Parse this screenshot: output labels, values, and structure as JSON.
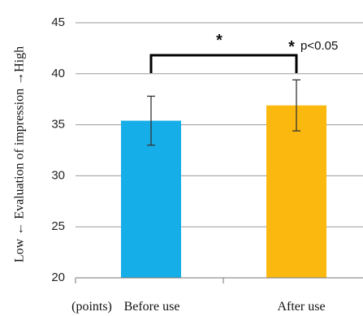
{
  "chart_data": {
    "type": "bar",
    "categories": [
      "Before use",
      "After use"
    ],
    "values": [
      35.4,
      36.9
    ],
    "errors": [
      2.4,
      2.5
    ],
    "colors": [
      "#16aee8",
      "#fbb80e"
    ],
    "ylim": [
      20,
      45
    ],
    "yticks": [
      20,
      25,
      30,
      35,
      40,
      45
    ],
    "ylabel": "Low ← Evaluation of impression →High",
    "unit_label": "(points)",
    "grid": true,
    "significance": {
      "marker": "*",
      "pvalue_label": "p<0.05"
    }
  }
}
